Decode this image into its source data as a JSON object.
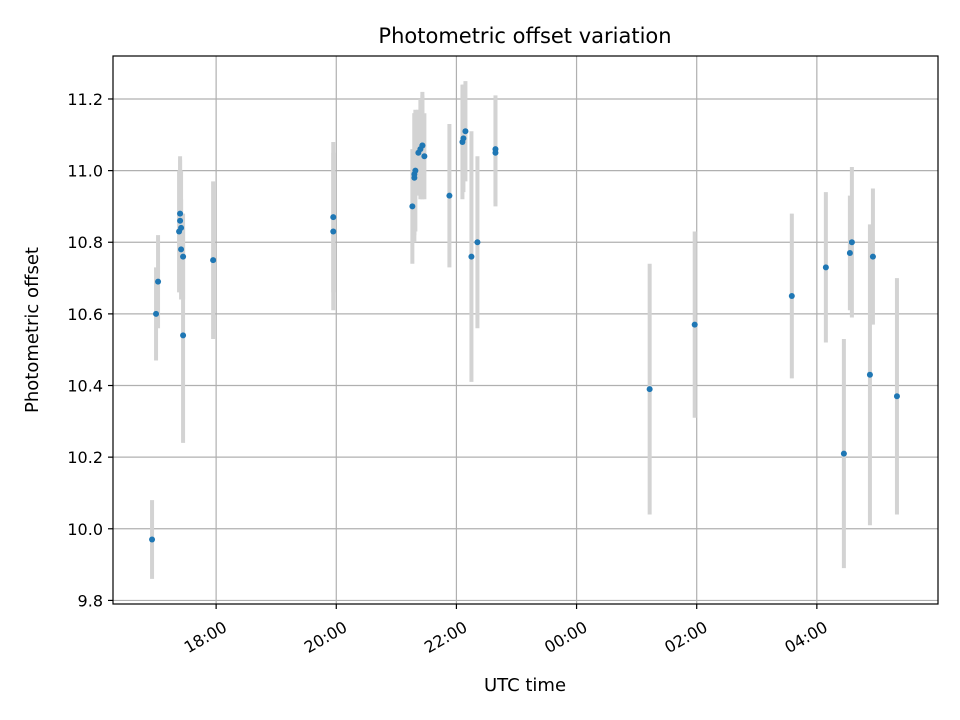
{
  "chart_data": {
    "type": "scatter",
    "title": "Photometric offset variation",
    "xlabel": "UTC time",
    "ylabel": "Photometric offset",
    "x_axis_kind": "time",
    "xlim": [
      "16:17",
      "06:01"
    ],
    "ylim": [
      9.79,
      11.32
    ],
    "x_ticks": [
      "18:00",
      "20:00",
      "22:00",
      "00:00",
      "02:00",
      "04:00"
    ],
    "y_ticks": [
      "9.8",
      "10.0",
      "10.2",
      "10.4",
      "10.6",
      "10.8",
      "11.0",
      "11.2"
    ],
    "grid": true,
    "marker_color": "#1f77b4",
    "errorbar_color": "#d3d3d3",
    "points": [
      {
        "x": "16:56",
        "y": 9.97,
        "err": 0.11
      },
      {
        "x": "17:00",
        "y": 10.6,
        "err": 0.13
      },
      {
        "x": "17:02",
        "y": 10.69,
        "err": 0.13
      },
      {
        "x": "17:23",
        "y": 10.83,
        "err": 0.17
      },
      {
        "x": "17:24",
        "y": 10.86,
        "err": 0.17
      },
      {
        "x": "17:24",
        "y": 10.88,
        "err": 0.16
      },
      {
        "x": "17:25",
        "y": 10.84,
        "err": 0.16
      },
      {
        "x": "17:25",
        "y": 10.78,
        "err": 0.14
      },
      {
        "x": "17:27",
        "y": 10.54,
        "err": 0.3
      },
      {
        "x": "17:27",
        "y": 10.76,
        "err": 0.12
      },
      {
        "x": "17:57",
        "y": 10.75,
        "err": 0.22
      },
      {
        "x": "19:57",
        "y": 10.87,
        "err": 0.21
      },
      {
        "x": "19:57",
        "y": 10.83,
        "err": 0.22
      },
      {
        "x": "21:16",
        "y": 10.9,
        "err": 0.16
      },
      {
        "x": "21:18",
        "y": 10.98,
        "err": 0.18
      },
      {
        "x": "21:18",
        "y": 10.99,
        "err": 0.17
      },
      {
        "x": "21:19",
        "y": 11.0,
        "err": 0.17
      },
      {
        "x": "21:22",
        "y": 11.05,
        "err": 0.12
      },
      {
        "x": "21:24",
        "y": 11.06,
        "err": 0.14
      },
      {
        "x": "21:26",
        "y": 11.07,
        "err": 0.15
      },
      {
        "x": "21:26",
        "y": 11.07,
        "err": 0.14
      },
      {
        "x": "21:28",
        "y": 11.04,
        "err": 0.12
      },
      {
        "x": "21:53",
        "y": 10.93,
        "err": 0.2
      },
      {
        "x": "22:06",
        "y": 11.08,
        "err": 0.16
      },
      {
        "x": "22:07",
        "y": 11.09,
        "err": 0.15
      },
      {
        "x": "22:09",
        "y": 11.11,
        "err": 0.14
      },
      {
        "x": "22:15",
        "y": 10.76,
        "err": 0.35
      },
      {
        "x": "22:21",
        "y": 10.8,
        "err": 0.24
      },
      {
        "x": "22:39",
        "y": 11.05,
        "err": 0.15
      },
      {
        "x": "22:39",
        "y": 11.06,
        "err": 0.15
      },
      {
        "x": "01:13",
        "y": 10.39,
        "err": 0.35
      },
      {
        "x": "01:58",
        "y": 10.57,
        "err": 0.26
      },
      {
        "x": "03:35",
        "y": 10.65,
        "err": 0.23
      },
      {
        "x": "04:09",
        "y": 10.73,
        "err": 0.21
      },
      {
        "x": "04:27",
        "y": 10.21,
        "err": 0.32
      },
      {
        "x": "04:33",
        "y": 10.77,
        "err": 0.16
      },
      {
        "x": "04:35",
        "y": 10.8,
        "err": 0.21
      },
      {
        "x": "04:53",
        "y": 10.43,
        "err": 0.42
      },
      {
        "x": "04:56",
        "y": 10.76,
        "err": 0.19
      },
      {
        "x": "05:20",
        "y": 10.37,
        "err": 0.33
      }
    ]
  }
}
